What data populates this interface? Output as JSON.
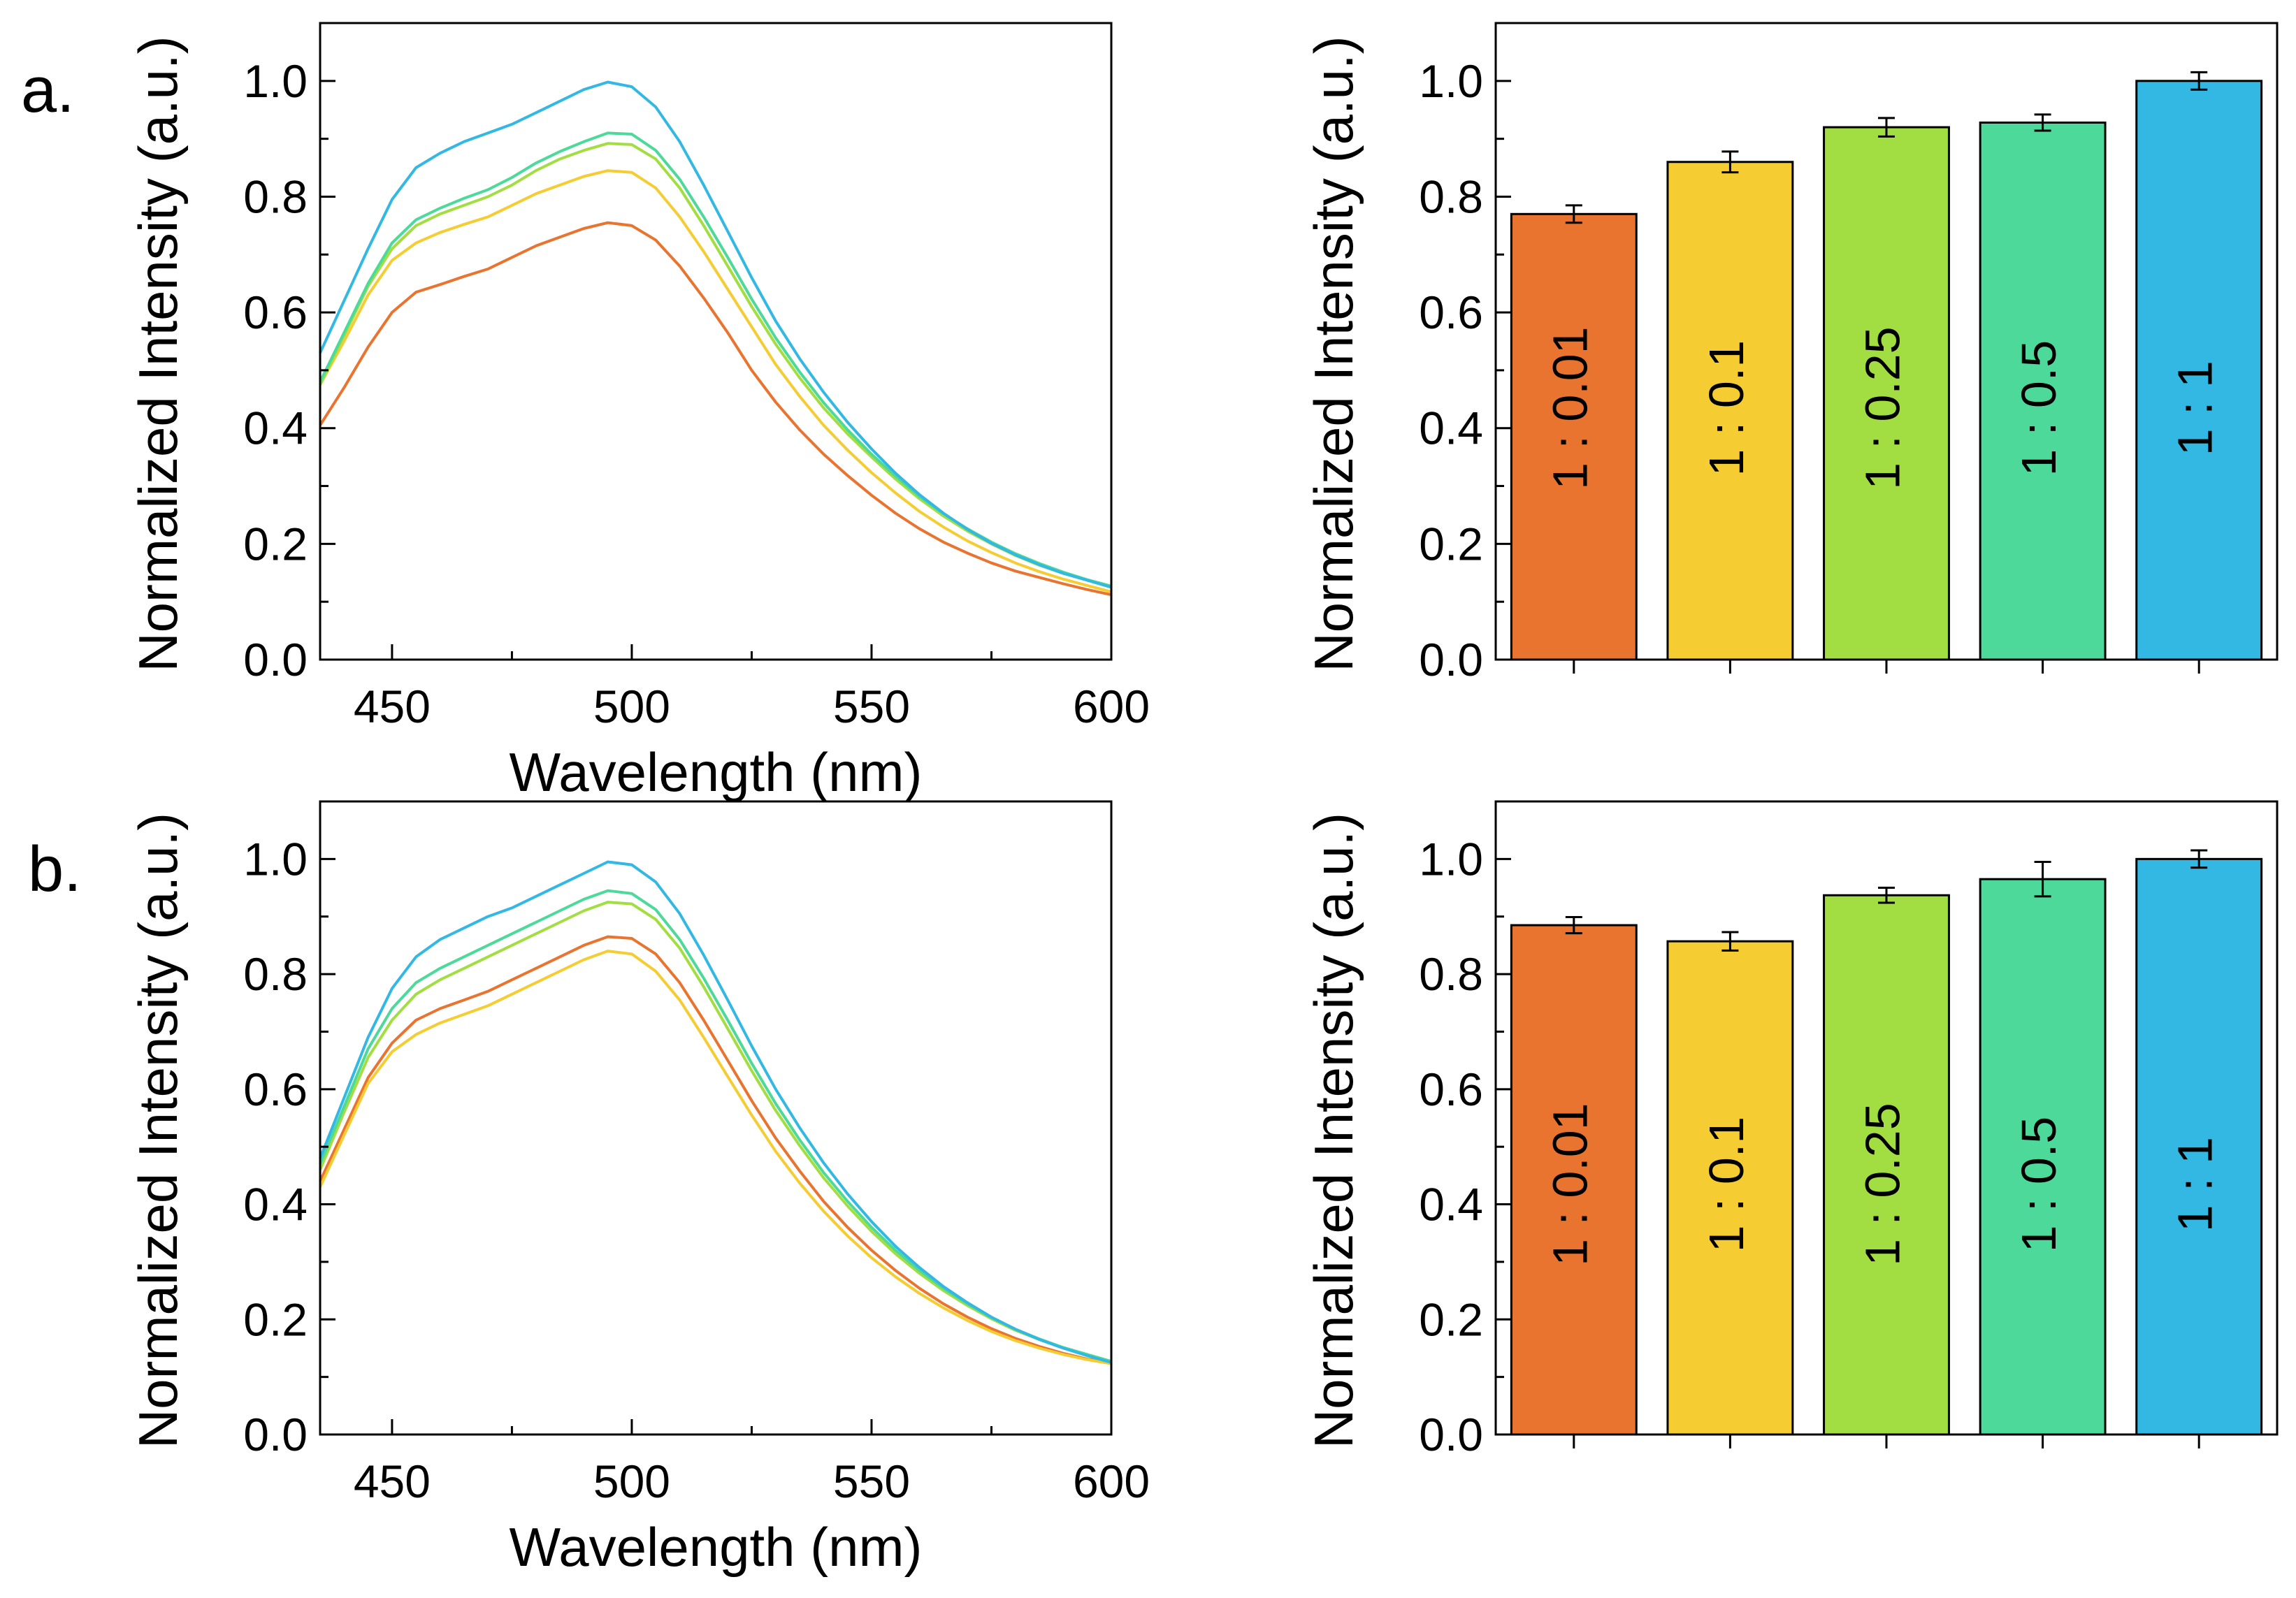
{
  "figure": {
    "panel_labels": [
      "a.",
      "b."
    ]
  },
  "chart_data": [
    {
      "type": "line",
      "panel": "a-spectra",
      "title": "",
      "xlabel": "Wavelength (nm)",
      "ylabel": "Normalized Intensity (a.u.)",
      "xlim": [
        435,
        600
      ],
      "ylim": [
        0,
        1.1
      ],
      "xticks": [
        450,
        500,
        550,
        600
      ],
      "yticks": [
        0.0,
        0.2,
        0.4,
        0.6,
        0.8,
        1.0
      ],
      "x": [
        435,
        440,
        445,
        450,
        455,
        460,
        465,
        470,
        475,
        480,
        485,
        490,
        495,
        500,
        505,
        510,
        515,
        520,
        525,
        530,
        535,
        540,
        545,
        550,
        555,
        560,
        565,
        570,
        575,
        580,
        585,
        590,
        595,
        600
      ],
      "series": [
        {
          "name": "1 : 0.01",
          "color": "#E8742F",
          "values": [
            0.405,
            0.47,
            0.54,
            0.6,
            0.635,
            0.648,
            0.662,
            0.675,
            0.695,
            0.715,
            0.73,
            0.745,
            0.755,
            0.75,
            0.725,
            0.68,
            0.625,
            0.565,
            0.5,
            0.445,
            0.397,
            0.355,
            0.318,
            0.284,
            0.253,
            0.226,
            0.203,
            0.184,
            0.167,
            0.153,
            0.142,
            0.131,
            0.121,
            0.112
          ]
        },
        {
          "name": "1 : 0.1",
          "color": "#F5CC32",
          "values": [
            0.475,
            0.55,
            0.63,
            0.69,
            0.72,
            0.738,
            0.752,
            0.765,
            0.785,
            0.805,
            0.82,
            0.835,
            0.845,
            0.842,
            0.815,
            0.765,
            0.705,
            0.64,
            0.575,
            0.51,
            0.455,
            0.405,
            0.362,
            0.323,
            0.288,
            0.256,
            0.229,
            0.205,
            0.185,
            0.167,
            0.152,
            0.139,
            0.128,
            0.117
          ]
        },
        {
          "name": "1 : 0.25",
          "color": "#A2DE41",
          "values": [
            0.475,
            0.56,
            0.645,
            0.71,
            0.75,
            0.77,
            0.785,
            0.8,
            0.82,
            0.845,
            0.865,
            0.88,
            0.892,
            0.89,
            0.865,
            0.815,
            0.75,
            0.68,
            0.61,
            0.545,
            0.487,
            0.435,
            0.39,
            0.35,
            0.312,
            0.278,
            0.248,
            0.222,
            0.2,
            0.18,
            0.163,
            0.149,
            0.137,
            0.125
          ]
        },
        {
          "name": "1 : 0.5",
          "color": "#4CD99A",
          "values": [
            0.48,
            0.565,
            0.65,
            0.72,
            0.76,
            0.78,
            0.797,
            0.812,
            0.833,
            0.858,
            0.878,
            0.895,
            0.91,
            0.908,
            0.88,
            0.83,
            0.765,
            0.695,
            0.623,
            0.556,
            0.497,
            0.444,
            0.397,
            0.355,
            0.317,
            0.282,
            0.252,
            0.226,
            0.203,
            0.183,
            0.166,
            0.151,
            0.138,
            0.127
          ]
        },
        {
          "name": "1 : 1",
          "color": "#33B8E3",
          "values": [
            0.53,
            0.62,
            0.71,
            0.795,
            0.85,
            0.875,
            0.895,
            0.91,
            0.925,
            0.945,
            0.965,
            0.985,
            0.998,
            0.99,
            0.955,
            0.895,
            0.82,
            0.74,
            0.66,
            0.585,
            0.52,
            0.462,
            0.41,
            0.364,
            0.322,
            0.285,
            0.253,
            0.225,
            0.201,
            0.181,
            0.164,
            0.149,
            0.137,
            0.125
          ]
        }
      ]
    },
    {
      "type": "bar",
      "panel": "a-bars",
      "title": "",
      "xlabel": "",
      "ylabel": "Normalized Intensity (a.u.)",
      "ylim": [
        0,
        1.1
      ],
      "yticks": [
        0.0,
        0.2,
        0.4,
        0.6,
        0.8,
        1.0
      ],
      "categories": [
        "1 : 0.01",
        "1 : 0.1",
        "1 : 0.25",
        "1 : 0.5",
        "1 : 1"
      ],
      "values": [
        0.77,
        0.86,
        0.92,
        0.928,
        1.0
      ],
      "errors": [
        0.015,
        0.018,
        0.016,
        0.014,
        0.015
      ],
      "colors": [
        "#E8742F",
        "#F5CC32",
        "#A2DE41",
        "#4CD99A",
        "#33B8E3"
      ]
    },
    {
      "type": "line",
      "panel": "b-spectra",
      "title": "",
      "xlabel": "Wavelength (nm)",
      "ylabel": "Normalized Intensity (a.u.)",
      "xlim": [
        435,
        600
      ],
      "ylim": [
        0,
        1.1
      ],
      "xticks": [
        450,
        500,
        550,
        600
      ],
      "yticks": [
        0.0,
        0.2,
        0.4,
        0.6,
        0.8,
        1.0
      ],
      "x": [
        435,
        440,
        445,
        450,
        455,
        460,
        465,
        470,
        475,
        480,
        485,
        490,
        495,
        500,
        505,
        510,
        515,
        520,
        525,
        530,
        535,
        540,
        545,
        550,
        555,
        560,
        565,
        570,
        575,
        580,
        585,
        590,
        595,
        600
      ],
      "series": [
        {
          "name": "1 : 0.01",
          "color": "#E8742F",
          "values": [
            0.44,
            0.53,
            0.62,
            0.68,
            0.72,
            0.74,
            0.755,
            0.77,
            0.79,
            0.81,
            0.83,
            0.85,
            0.865,
            0.862,
            0.835,
            0.785,
            0.72,
            0.65,
            0.58,
            0.515,
            0.458,
            0.405,
            0.36,
            0.32,
            0.285,
            0.254,
            0.227,
            0.204,
            0.184,
            0.167,
            0.153,
            0.141,
            0.131,
            0.124
          ]
        },
        {
          "name": "1 : 0.1",
          "color": "#F5CC32",
          "values": [
            0.43,
            0.52,
            0.61,
            0.665,
            0.695,
            0.715,
            0.73,
            0.745,
            0.765,
            0.785,
            0.805,
            0.825,
            0.84,
            0.835,
            0.805,
            0.755,
            0.69,
            0.622,
            0.555,
            0.492,
            0.437,
            0.388,
            0.345,
            0.307,
            0.274,
            0.245,
            0.22,
            0.198,
            0.179,
            0.163,
            0.15,
            0.139,
            0.13,
            0.123
          ]
        },
        {
          "name": "1 : 0.25",
          "color": "#A2DE41",
          "values": [
            0.46,
            0.56,
            0.655,
            0.72,
            0.765,
            0.79,
            0.81,
            0.83,
            0.85,
            0.87,
            0.89,
            0.91,
            0.925,
            0.922,
            0.895,
            0.845,
            0.778,
            0.705,
            0.632,
            0.563,
            0.502,
            0.446,
            0.397,
            0.353,
            0.314,
            0.28,
            0.25,
            0.224,
            0.201,
            0.181,
            0.165,
            0.151,
            0.139,
            0.127
          ]
        },
        {
          "name": "1 : 0.5",
          "color": "#4CD99A",
          "values": [
            0.47,
            0.57,
            0.67,
            0.74,
            0.785,
            0.81,
            0.83,
            0.85,
            0.87,
            0.89,
            0.91,
            0.93,
            0.945,
            0.94,
            0.912,
            0.86,
            0.793,
            0.72,
            0.645,
            0.575,
            0.512,
            0.455,
            0.405,
            0.36,
            0.32,
            0.285,
            0.254,
            0.227,
            0.203,
            0.183,
            0.166,
            0.151,
            0.139,
            0.127
          ]
        },
        {
          "name": "1 : 1",
          "color": "#33B8E3",
          "values": [
            0.48,
            0.585,
            0.69,
            0.775,
            0.83,
            0.86,
            0.88,
            0.9,
            0.915,
            0.935,
            0.955,
            0.975,
            0.995,
            0.99,
            0.96,
            0.905,
            0.833,
            0.755,
            0.675,
            0.6,
            0.533,
            0.472,
            0.418,
            0.37,
            0.327,
            0.29,
            0.257,
            0.229,
            0.204,
            0.183,
            0.165,
            0.15,
            0.137,
            0.125
          ]
        }
      ]
    },
    {
      "type": "bar",
      "panel": "b-bars",
      "title": "",
      "xlabel": "",
      "ylabel": "Normalized Intensity (a.u.)",
      "ylim": [
        0,
        1.1
      ],
      "yticks": [
        0.0,
        0.2,
        0.4,
        0.6,
        0.8,
        1.0
      ],
      "categories": [
        "1 : 0.01",
        "1 : 0.1",
        "1 : 0.25",
        "1 : 0.5",
        "1 : 1"
      ],
      "values": [
        0.885,
        0.857,
        0.937,
        0.965,
        1.0
      ],
      "errors": [
        0.014,
        0.016,
        0.013,
        0.03,
        0.015
      ],
      "colors": [
        "#E8742F",
        "#F5CC32",
        "#A2DE41",
        "#4CD99A",
        "#33B8E3"
      ]
    }
  ]
}
